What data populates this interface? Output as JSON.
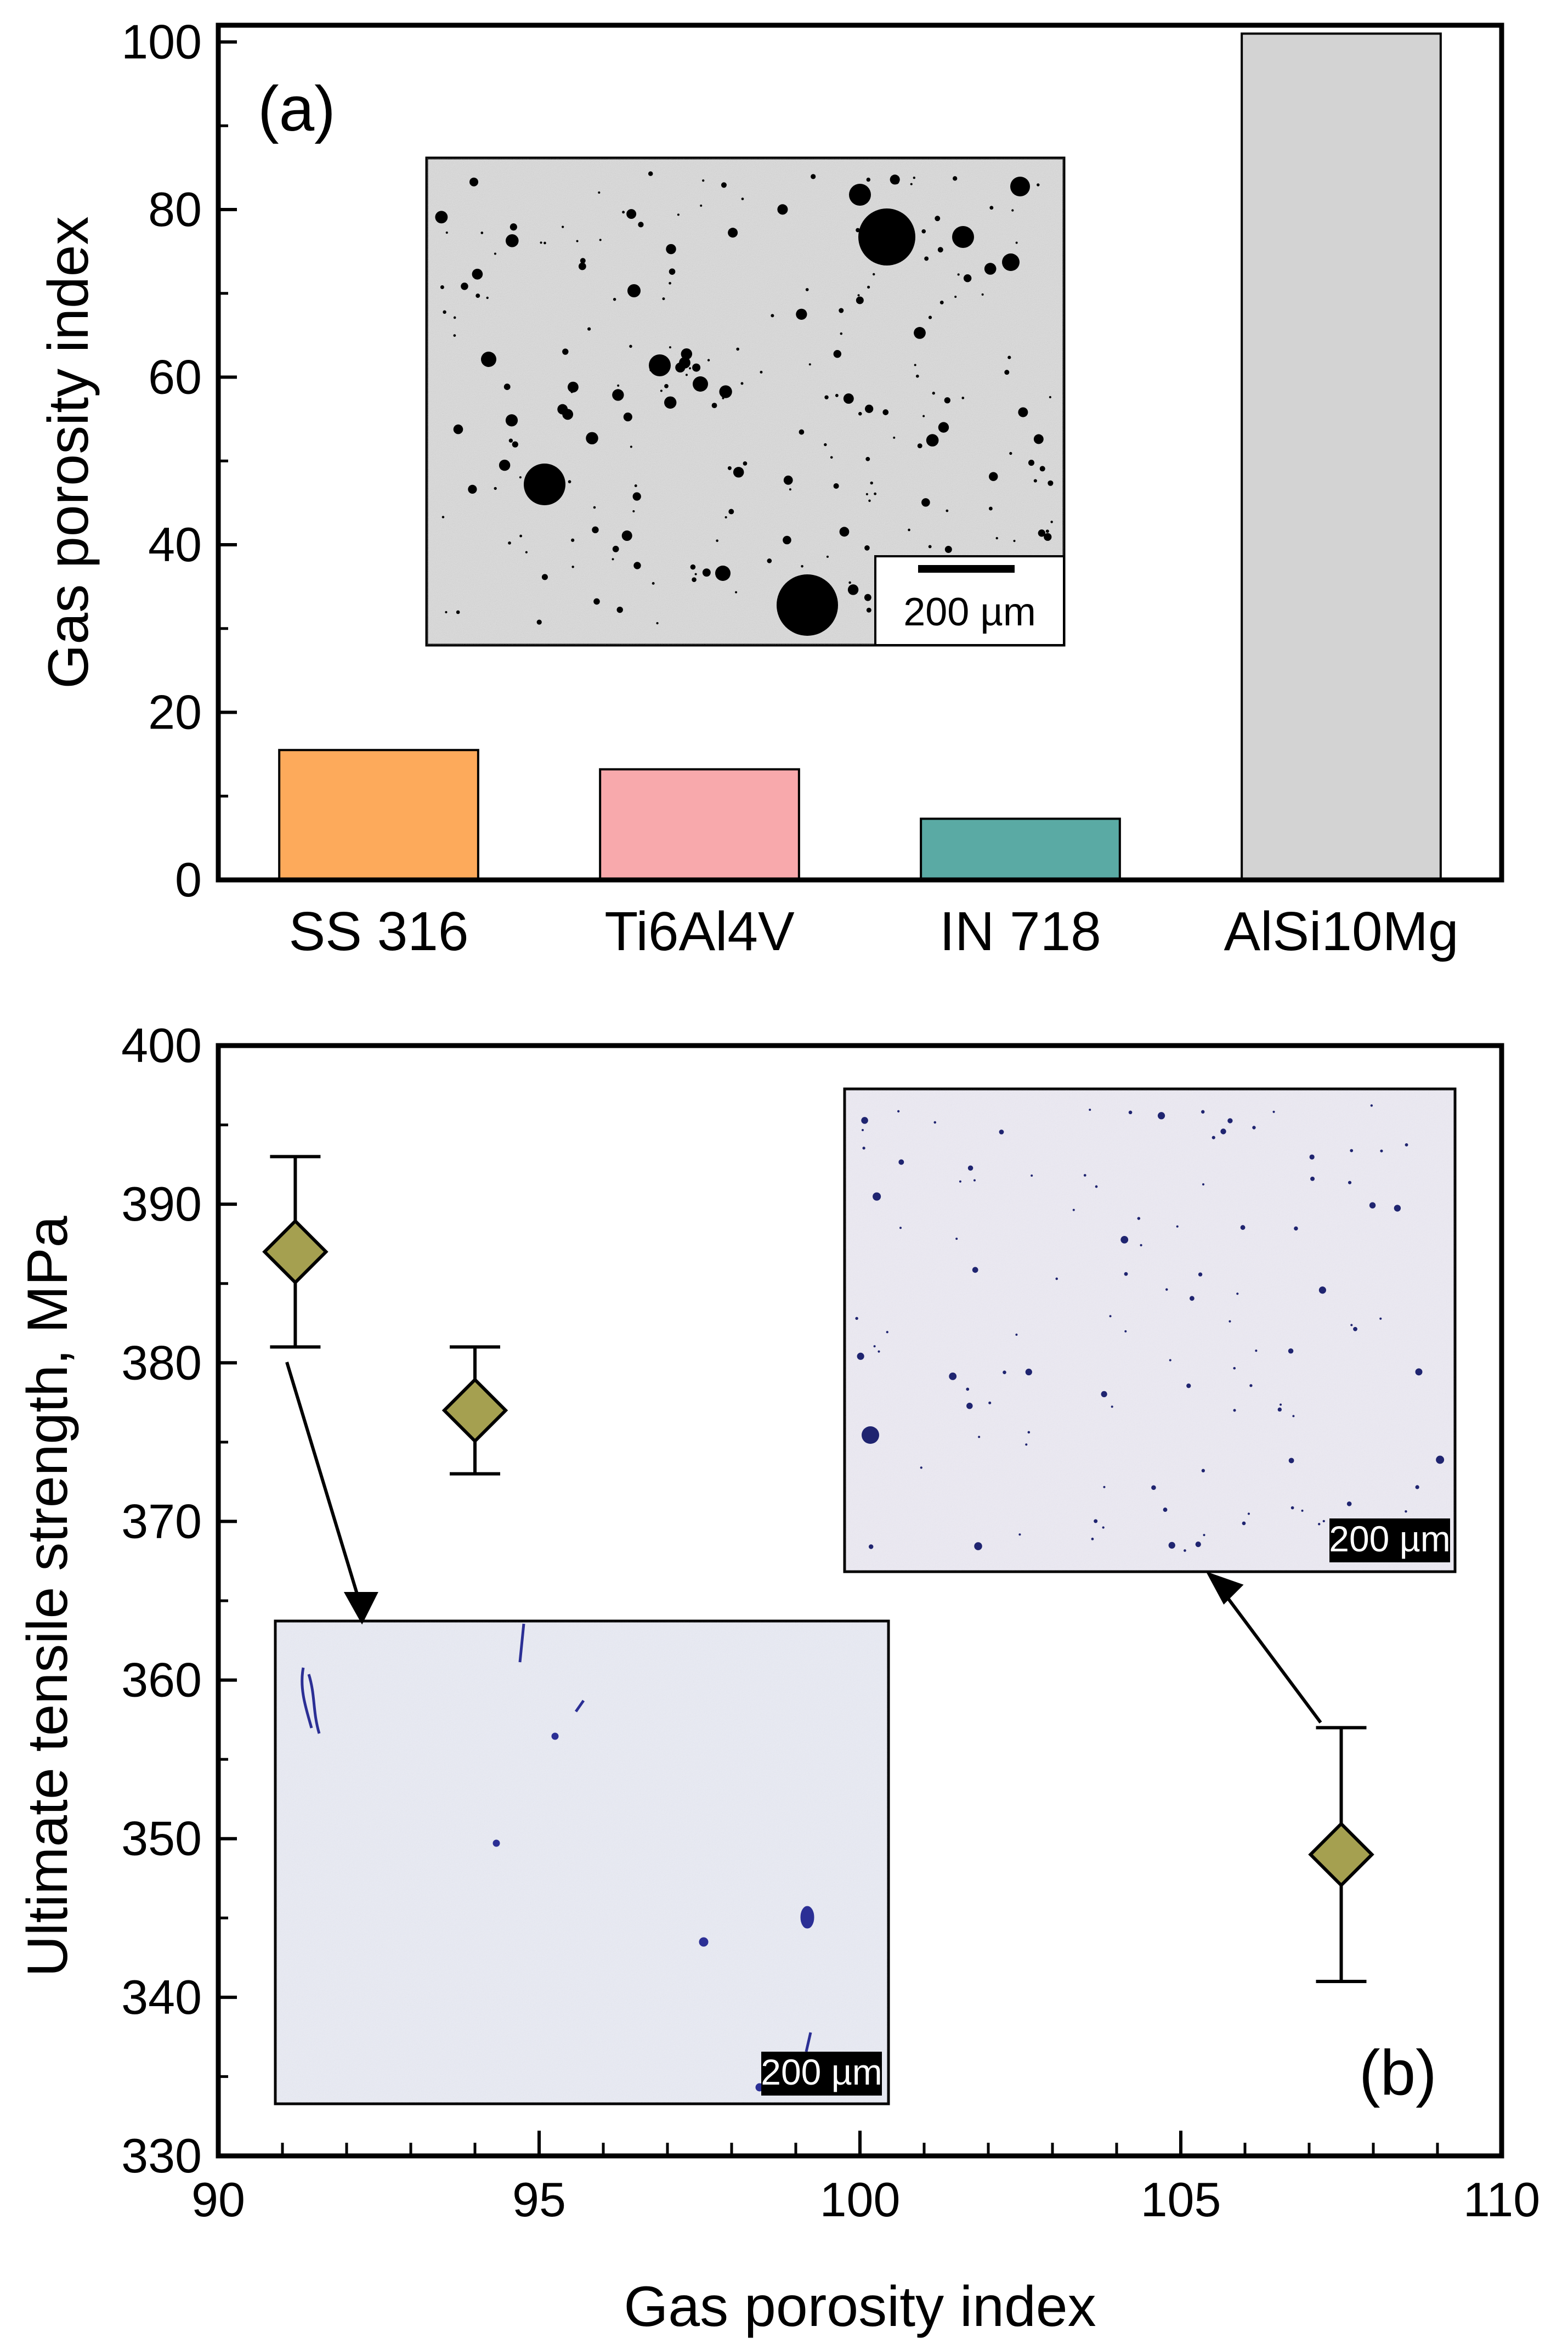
{
  "chart_data": [
    {
      "panel_label": "(a)",
      "type": "bar",
      "categories": [
        "SS 316",
        "Ti6Al4V",
        "IN 718",
        "AlSi10Mg"
      ],
      "values": [
        15.5,
        13.2,
        7.3,
        101.0
      ],
      "colors": [
        "#FDAA5B",
        "#F8A9AC",
        "#5AAAA4",
        "#D3D3D3"
      ],
      "ylabel": "Gas porosity index",
      "xlabel": "",
      "ylim": [
        0,
        102
      ],
      "yticks": [
        0,
        20,
        40,
        60,
        80,
        100
      ],
      "grid": false,
      "inset": {
        "type": "micrograph",
        "scale_bar_label": "200 µm"
      }
    },
    {
      "panel_label": "(b)",
      "type": "scatter",
      "x": [
        91.2,
        94.0,
        107.5
      ],
      "y": [
        387,
        377,
        349
      ],
      "yerr": [
        6,
        4,
        8
      ],
      "marker": "diamond",
      "marker_color": "#A5A050",
      "xlabel": "Gas porosity index",
      "ylabel": "Ultimate tensile strength, MPa",
      "xlim": [
        90,
        110
      ],
      "ylim": [
        330,
        400
      ],
      "xticks": [
        90,
        95,
        100,
        105,
        110
      ],
      "yticks": [
        330,
        340,
        350,
        360,
        370,
        380,
        390,
        400
      ],
      "grid": false,
      "insets": [
        {
          "type": "micrograph",
          "scale_bar_label": "200 µm"
        },
        {
          "type": "micrograph",
          "scale_bar_label": "200 µm"
        }
      ]
    }
  ]
}
